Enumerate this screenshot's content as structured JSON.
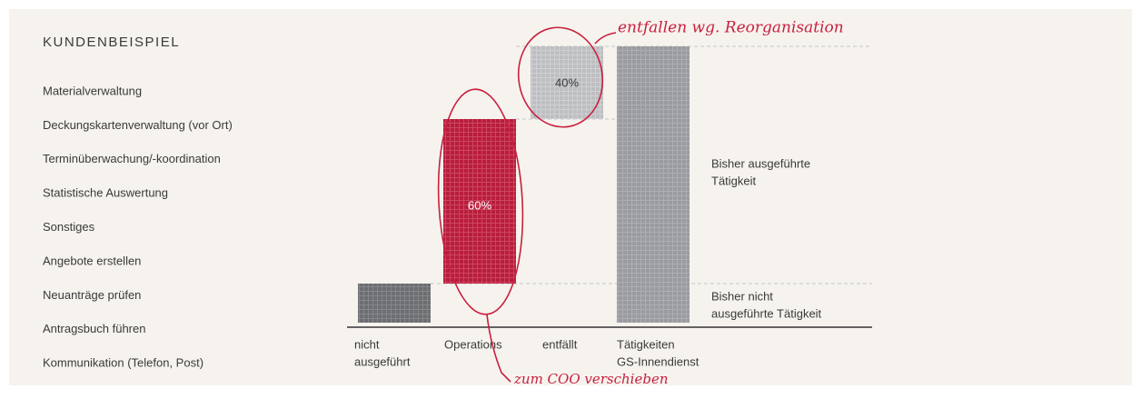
{
  "title": "KUNDENBEISPIEL",
  "activities": [
    "Materialverwaltung",
    "Deckungskartenverwaltung (vor Ort)",
    "Terminüberwachung/-koordination",
    "Statistische Auswertung",
    "Sonstiges",
    "Angebote erstellen",
    "Neuanträge prüfen",
    "Antragsbuch führen",
    "Kommunikation (Telefon, Post)"
  ],
  "bars": [
    {
      "label": [
        "nicht",
        "ausgeführt"
      ]
    },
    {
      "label": [
        "Operations"
      ],
      "value_label": "60%"
    },
    {
      "label": [
        "entfällt"
      ],
      "value_label": "40%"
    },
    {
      "label": [
        "Tätigkeiten",
        "GS-Innendienst"
      ]
    }
  ],
  "legend": [
    {
      "label": [
        "Bisher ausgeführte",
        "Tätigkeit"
      ]
    },
    {
      "label": [
        "Bisher nicht",
        "ausgeführte Tätigkeit"
      ]
    }
  ],
  "annotations": [
    "entfallen wg. Reorganisation",
    "zum COO verschieben"
  ]
}
